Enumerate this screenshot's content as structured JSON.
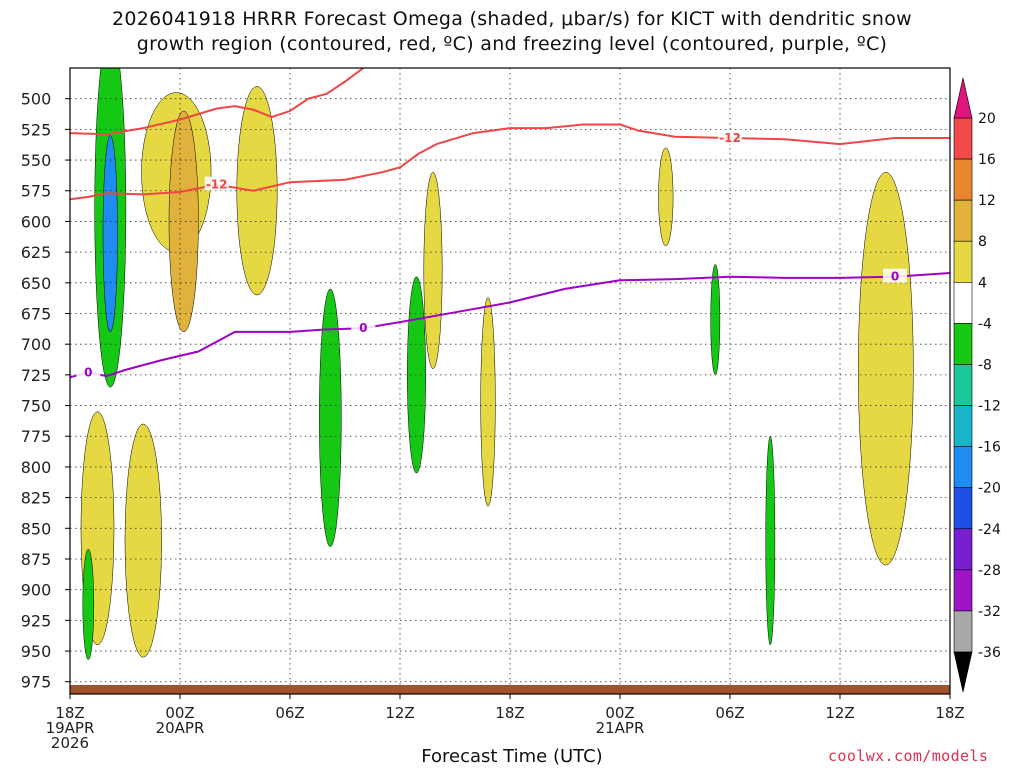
{
  "chart_data": {
    "type": "contour",
    "title_line1": "2026041918 HRRR Forecast Omega (shaded, μbar/s) for KICT with dendritic snow",
    "title_line2": "growth region (contoured, red, ºC) and freezing level (contoured, purple, ºC)",
    "xlabel": "Forecast Time (UTC)",
    "credit": "coolwx.com/models",
    "x_range_hours": [
      0,
      48
    ],
    "y_range_mb": [
      475,
      985
    ],
    "x_ticks": [
      {
        "h": 0,
        "line1": "18Z",
        "line2": "19APR",
        "line3": "2026"
      },
      {
        "h": 6,
        "line1": "00Z",
        "line2": "20APR",
        "line3": ""
      },
      {
        "h": 12,
        "line1": "06Z",
        "line2": "",
        "line3": ""
      },
      {
        "h": 18,
        "line1": "12Z",
        "line2": "",
        "line3": ""
      },
      {
        "h": 24,
        "line1": "18Z",
        "line2": "",
        "line3": ""
      },
      {
        "h": 30,
        "line1": "00Z",
        "line2": "21APR",
        "line3": ""
      },
      {
        "h": 36,
        "line1": "06Z",
        "line2": "",
        "line3": ""
      },
      {
        "h": 42,
        "line1": "12Z",
        "line2": "",
        "line3": ""
      },
      {
        "h": 48,
        "line1": "18Z",
        "line2": "",
        "line3": ""
      }
    ],
    "y_ticks": [
      500,
      525,
      550,
      575,
      600,
      625,
      650,
      675,
      700,
      725,
      750,
      775,
      800,
      825,
      850,
      875,
      900,
      925,
      950,
      975
    ],
    "colorbar": {
      "labels": [
        "20",
        "16",
        "12",
        "8",
        "4",
        "-4",
        "-8",
        "-12",
        "-16",
        "-20",
        "-24",
        "-28",
        "-32",
        "-36"
      ],
      "colors": [
        "#f24a4a",
        "#e8862d",
        "#e0b23c",
        "#e6d842",
        "#ffffff",
        "#14c814",
        "#19c896",
        "#19b4c8",
        "#1e8cf0",
        "#1e50e6",
        "#7a1ed2",
        "#a014c8",
        "#a8a8a8"
      ],
      "top_arrow_color": "#e0147d",
      "bottom_arrow_color": "#000000"
    },
    "contours": {
      "freezing_level_0C": {
        "color": "#a000c8",
        "label": "0",
        "points": [
          [
            0,
            727
          ],
          [
            1,
            723
          ],
          [
            2,
            726
          ],
          [
            3,
            721
          ],
          [
            5,
            713
          ],
          [
            7,
            706
          ],
          [
            9,
            690
          ],
          [
            12,
            690
          ],
          [
            14,
            688
          ],
          [
            16,
            687
          ],
          [
            18,
            682
          ],
          [
            21,
            674
          ],
          [
            24,
            666
          ],
          [
            27,
            655
          ],
          [
            30,
            648
          ],
          [
            33,
            647
          ],
          [
            36,
            645
          ],
          [
            39,
            646
          ],
          [
            42,
            646
          ],
          [
            45,
            645
          ],
          [
            48,
            642
          ]
        ]
      },
      "dgz_minus12C_lower": {
        "color": "#f04646",
        "label": "-12",
        "points": [
          [
            0,
            582
          ],
          [
            1,
            580
          ],
          [
            2,
            577
          ],
          [
            4,
            578
          ],
          [
            6,
            576
          ],
          [
            8,
            570
          ],
          [
            10,
            575
          ],
          [
            12,
            568
          ],
          [
            15,
            566
          ],
          [
            17,
            560
          ],
          [
            18,
            556
          ],
          [
            19,
            545
          ],
          [
            20,
            537
          ],
          [
            22,
            528
          ],
          [
            24,
            524
          ],
          [
            26,
            524
          ],
          [
            28,
            521
          ],
          [
            30,
            521
          ],
          [
            31,
            526
          ],
          [
            33,
            531
          ],
          [
            36,
            532
          ],
          [
            39,
            533
          ],
          [
            42,
            537
          ],
          [
            45,
            532
          ],
          [
            48,
            532
          ]
        ]
      },
      "dgz_minus12C_upper": {
        "color": "#f04646",
        "label": "-12",
        "points": [
          [
            0,
            528
          ],
          [
            2,
            529
          ],
          [
            4,
            524
          ],
          [
            6,
            517
          ],
          [
            8,
            508
          ],
          [
            9,
            506
          ],
          [
            10,
            509
          ],
          [
            11,
            515
          ],
          [
            12,
            510
          ],
          [
            13,
            500
          ],
          [
            14,
            496
          ],
          [
            15,
            486
          ],
          [
            16,
            475
          ]
        ]
      }
    },
    "omega_features": [
      {
        "value_class": 4,
        "center": [
          5.8,
          560
        ],
        "extent": [
          3.8,
          130
        ],
        "color": "#e6d842"
      },
      {
        "value_class": 4,
        "center": [
          10.2,
          575
        ],
        "extent": [
          2.2,
          170
        ],
        "color": "#e6d842"
      },
      {
        "value_class": 8,
        "center": [
          6.2,
          600
        ],
        "extent": [
          1.6,
          180
        ],
        "color": "#e0b23c"
      },
      {
        "value_class": -8,
        "center": [
          2.2,
          590
        ],
        "extent": [
          1.7,
          290
        ],
        "color": "#14c814"
      },
      {
        "value_class": -16,
        "center": [
          2.2,
          610
        ],
        "extent": [
          0.8,
          160
        ],
        "color": "#1e8cf0"
      },
      {
        "value_class": -8,
        "center": [
          14.2,
          760
        ],
        "extent": [
          1.2,
          210
        ],
        "color": "#14c814"
      },
      {
        "value_class": -8,
        "center": [
          18.9,
          725
        ],
        "extent": [
          1.0,
          160
        ],
        "color": "#14c814"
      },
      {
        "value_class": 4,
        "center": [
          44.5,
          720
        ],
        "extent": [
          3.0,
          320
        ],
        "color": "#e6d842"
      },
      {
        "value_class": 4,
        "center": [
          1.5,
          850
        ],
        "extent": [
          1.8,
          190
        ],
        "color": "#e6d842"
      },
      {
        "value_class": 4,
        "center": [
          4.0,
          860
        ],
        "extent": [
          2.0,
          190
        ],
        "color": "#e6d842"
      },
      {
        "value_class": 4,
        "center": [
          22.8,
          747
        ],
        "extent": [
          0.8,
          170
        ],
        "color": "#e6d842"
      },
      {
        "value_class": 4,
        "center": [
          19.8,
          640
        ],
        "extent": [
          1.0,
          160
        ],
        "color": "#e6d842"
      },
      {
        "value_class": 4,
        "center": [
          32.5,
          580
        ],
        "extent": [
          0.8,
          80
        ],
        "color": "#e6d842"
      },
      {
        "value_class": -8,
        "center": [
          35.2,
          680
        ],
        "extent": [
          0.5,
          90
        ],
        "color": "#14c814"
      },
      {
        "value_class": -8,
        "center": [
          38.2,
          860
        ],
        "extent": [
          0.5,
          170
        ],
        "color": "#14c814"
      },
      {
        "value_class": -8,
        "center": [
          1.0,
          912
        ],
        "extent": [
          0.6,
          90
        ],
        "color": "#14c814"
      }
    ],
    "terrain_color": "#a0522d"
  }
}
